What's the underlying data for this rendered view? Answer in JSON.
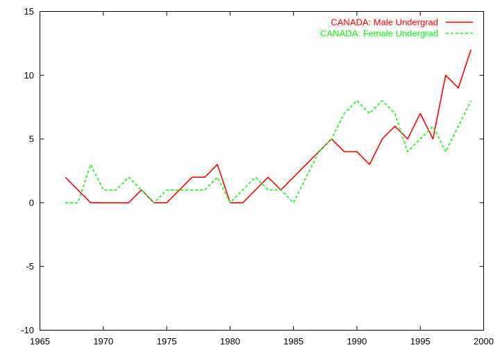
{
  "chart_data": {
    "type": "line",
    "title": "",
    "xlabel": "",
    "ylabel": "",
    "xlim": [
      1965,
      2000
    ],
    "ylim": [
      -10,
      15
    ],
    "grid": false,
    "legend_position": "top-right",
    "x_ticks": [
      1965,
      1970,
      1975,
      1980,
      1985,
      1990,
      1995,
      2000
    ],
    "y_ticks": [
      -10,
      -5,
      0,
      5,
      10,
      15
    ],
    "x": [
      1967,
      1968,
      1969,
      1970,
      1971,
      1972,
      1973,
      1974,
      1975,
      1976,
      1977,
      1978,
      1979,
      1980,
      1981,
      1982,
      1983,
      1984,
      1985,
      1986,
      1987,
      1988,
      1989,
      1990,
      1991,
      1992,
      1993,
      1994,
      1995,
      1996,
      1997,
      1998,
      1999
    ],
    "series": [
      {
        "name": "CANADA: Male Undergrad",
        "color": "#ff0000",
        "dash": "solid",
        "values": [
          2,
          1,
          0,
          0,
          0,
          0,
          1,
          0,
          0,
          1,
          2,
          2,
          3,
          0,
          0,
          1,
          2,
          1,
          2,
          3,
          4,
          5,
          4,
          4,
          3,
          5,
          6,
          5,
          7,
          5,
          10,
          9,
          12
        ]
      },
      {
        "name": "CANADA: Female Undergrad",
        "color": "#00ff00",
        "dash": "dashed",
        "values": [
          0,
          0,
          3,
          1,
          1,
          2,
          1,
          0,
          1,
          1,
          1,
          1,
          2,
          0,
          1,
          2,
          1,
          1,
          0,
          2,
          4,
          5,
          7,
          8,
          7,
          8,
          7,
          4,
          5,
          6,
          4,
          6,
          8
        ]
      }
    ]
  }
}
